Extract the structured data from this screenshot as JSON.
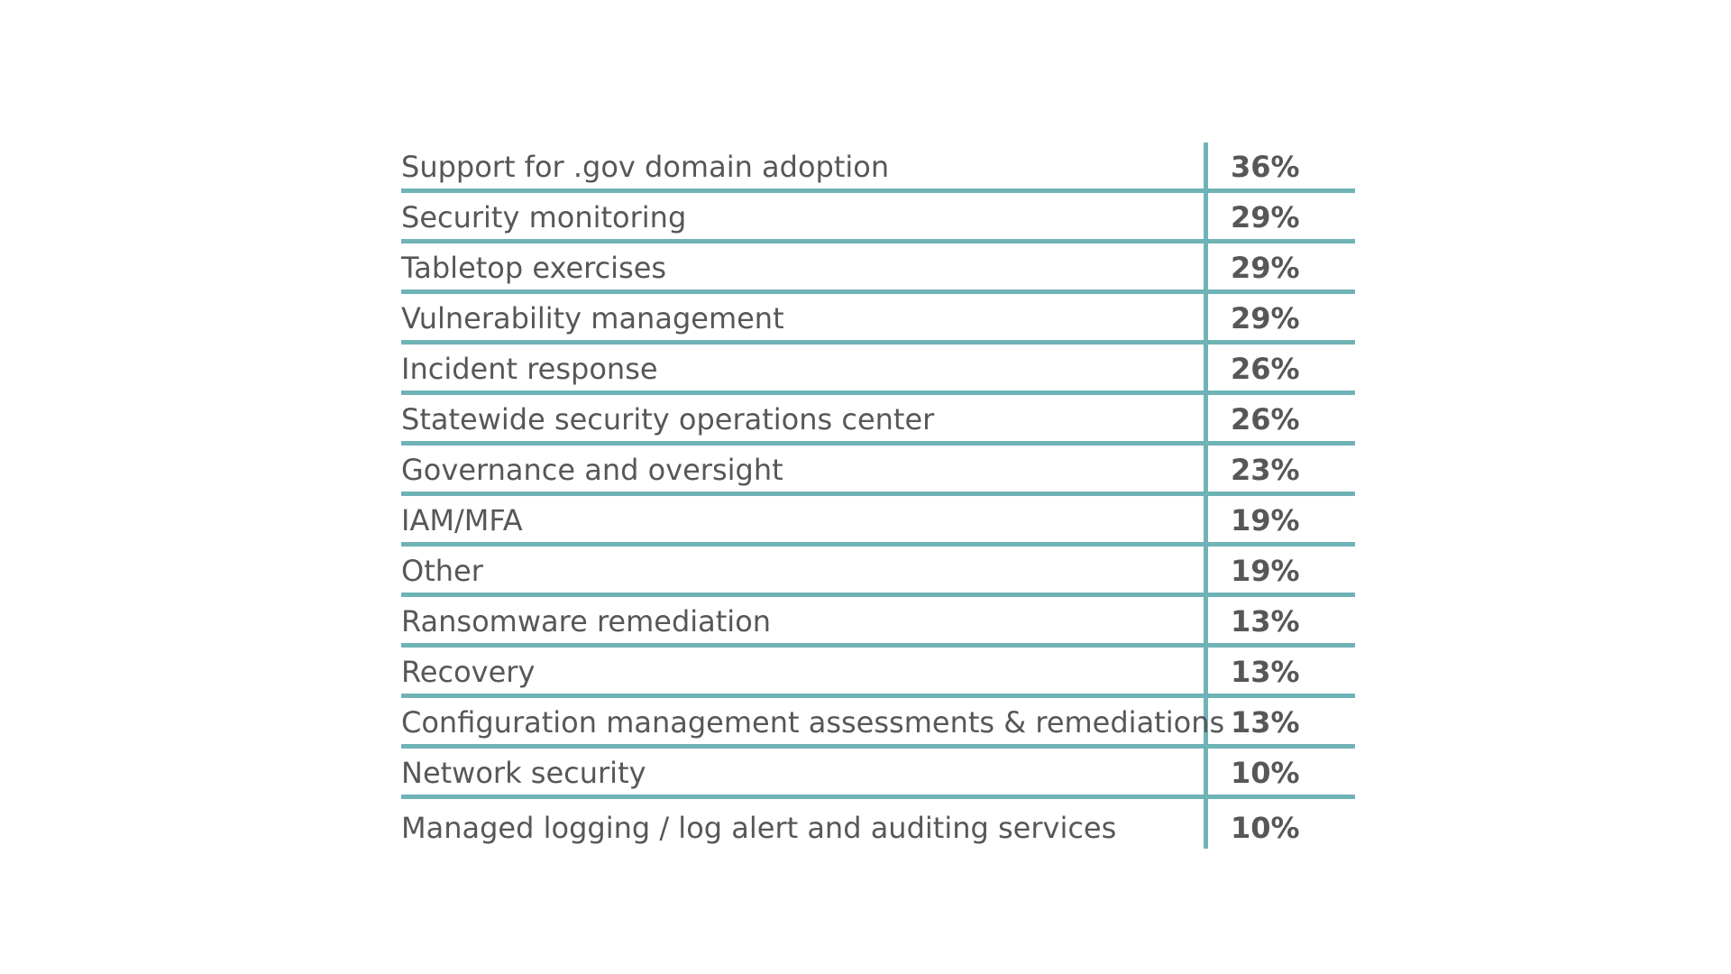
{
  "chart_data": {
    "type": "table",
    "title": "",
    "columns": [
      "",
      ""
    ],
    "accent_color": "#6fb3b6",
    "text_color": "#555759",
    "rows": [
      {
        "label": "Support for .gov domain adoption",
        "value": "36%"
      },
      {
        "label": "Security monitoring",
        "value": "29%"
      },
      {
        "label": "Tabletop exercises",
        "value": "29%"
      },
      {
        "label": "Vulnerability management",
        "value": "29%"
      },
      {
        "label": "Incident response",
        "value": "26%"
      },
      {
        "label": "Statewide security operations center",
        "value": "26%"
      },
      {
        "label": "Governance and oversight",
        "value": "23%"
      },
      {
        "label": "IAM/MFA",
        "value": "19%"
      },
      {
        "label": "Other",
        "value": "19%"
      },
      {
        "label": "Ransomware remediation",
        "value": "13%"
      },
      {
        "label": "Recovery",
        "value": "13%"
      },
      {
        "label": "Configuration management assessments & remediations",
        "value": "13%"
      },
      {
        "label": "Network security",
        "value": "10%"
      },
      {
        "label": "Managed logging / log alert and auditing services",
        "value": "10%"
      }
    ]
  }
}
